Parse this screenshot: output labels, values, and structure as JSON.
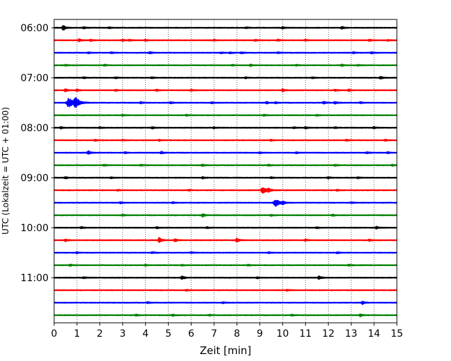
{
  "chart_data": {
    "type": "line",
    "title": "",
    "xlabel": "Zeit  [min]",
    "ylabel": "UTC (Lokalzeit = UTC + 01:00)",
    "xlim": [
      0,
      15
    ],
    "x_ticks": [
      "0",
      "1",
      "2",
      "3",
      "4",
      "5",
      "6",
      "7",
      "8",
      "9",
      "10",
      "11",
      "12",
      "13",
      "14",
      "15"
    ],
    "y_ticks": [
      "06:00",
      "07:00",
      "08:00",
      "09:00",
      "10:00",
      "11:00"
    ],
    "grid": "vertical dotted at every minute",
    "trace_interval_minutes": 15,
    "colors": [
      "#000000",
      "#ff0000",
      "#0000ff",
      "#008000"
    ],
    "traces": [
      {
        "start": "06:00",
        "color": "#000000",
        "events": [
          [
            0.4,
            1.0
          ],
          [
            1.3,
            0.3
          ],
          [
            2.4,
            0.25
          ],
          [
            8.4,
            0.25
          ],
          [
            10.0,
            0.3
          ],
          [
            12.6,
            0.45
          ]
        ]
      },
      {
        "start": "06:15",
        "color": "#ff0000",
        "events": [
          [
            1.1,
            0.5
          ],
          [
            1.6,
            0.3
          ],
          [
            3.0,
            0.3
          ],
          [
            3.3,
            0.25
          ],
          [
            4.0,
            0.3
          ],
          [
            7.0,
            0.25
          ],
          [
            8.8,
            0.3
          ],
          [
            9.8,
            0.3
          ],
          [
            11.0,
            0.25
          ],
          [
            13.8,
            0.3
          ],
          [
            14.6,
            0.25
          ]
        ]
      },
      {
        "start": "06:30",
        "color": "#0000ff",
        "events": [
          [
            1.5,
            0.25
          ],
          [
            2.5,
            0.25
          ],
          [
            4.2,
            0.3
          ],
          [
            7.3,
            0.25
          ],
          [
            7.7,
            0.3
          ],
          [
            8.2,
            0.25
          ],
          [
            9.8,
            0.25
          ],
          [
            13.1,
            0.25
          ],
          [
            13.9,
            0.3
          ]
        ]
      },
      {
        "start": "06:45",
        "color": "#008000",
        "events": [
          [
            0.5,
            0.25
          ],
          [
            2.2,
            0.3
          ],
          [
            7.8,
            0.25
          ],
          [
            8.6,
            0.3
          ],
          [
            10.6,
            0.25
          ],
          [
            12.6,
            0.3
          ],
          [
            13.3,
            0.25
          ]
        ]
      },
      {
        "start": "07:00",
        "color": "#000000",
        "events": [
          [
            1.3,
            0.25
          ],
          [
            2.7,
            0.25
          ],
          [
            4.3,
            0.3
          ],
          [
            8.4,
            0.25
          ],
          [
            11.3,
            0.25
          ],
          [
            14.3,
            0.5
          ]
        ]
      },
      {
        "start": "07:15",
        "color": "#ff0000",
        "events": [
          [
            0.5,
            0.5
          ],
          [
            1.0,
            0.3
          ],
          [
            2.7,
            0.25
          ],
          [
            4.5,
            0.3
          ],
          [
            6.0,
            0.25
          ],
          [
            10.0,
            0.45
          ],
          [
            12.3,
            0.3
          ],
          [
            12.9,
            0.35
          ]
        ]
      },
      {
        "start": "07:30",
        "color": "#0000ff",
        "events": [
          [
            0.65,
            1.8
          ],
          [
            0.95,
            1.9
          ],
          [
            3.8,
            0.3
          ],
          [
            5.1,
            0.3
          ],
          [
            6.9,
            0.25
          ],
          [
            9.3,
            0.35
          ],
          [
            9.7,
            0.3
          ],
          [
            11.8,
            0.45
          ],
          [
            12.3,
            0.35
          ],
          [
            13.4,
            0.25
          ]
        ]
      },
      {
        "start": "07:45",
        "color": "#008000",
        "events": [
          [
            3.0,
            0.25
          ],
          [
            5.8,
            0.25
          ],
          [
            9.2,
            0.3
          ],
          [
            11.5,
            0.25
          ]
        ]
      },
      {
        "start": "08:00",
        "color": "#000000",
        "events": [
          [
            0.3,
            0.3
          ],
          [
            2.0,
            0.25
          ],
          [
            4.3,
            0.3
          ],
          [
            7.0,
            0.25
          ],
          [
            10.5,
            0.3
          ],
          [
            11.0,
            0.3
          ],
          [
            12.3,
            0.25
          ],
          [
            14.0,
            0.3
          ]
        ]
      },
      {
        "start": "08:15",
        "color": "#ff0000",
        "events": [
          [
            1.8,
            0.25
          ],
          [
            3.0,
            0.25
          ],
          [
            4.6,
            0.25
          ],
          [
            9.5,
            0.25
          ],
          [
            12.8,
            0.3
          ],
          [
            14.5,
            0.25
          ]
        ]
      },
      {
        "start": "08:30",
        "color": "#0000ff",
        "events": [
          [
            1.5,
            0.75
          ],
          [
            3.1,
            0.3
          ],
          [
            4.7,
            0.4
          ],
          [
            9.0,
            0.25
          ],
          [
            10.6,
            0.25
          ],
          [
            13.7,
            0.3
          ],
          [
            14.6,
            0.3
          ]
        ]
      },
      {
        "start": "08:45",
        "color": "#008000",
        "events": [
          [
            2.2,
            0.3
          ],
          [
            3.8,
            0.3
          ],
          [
            6.5,
            0.35
          ],
          [
            9.4,
            0.25
          ],
          [
            12.3,
            0.3
          ],
          [
            14.8,
            0.25
          ]
        ]
      },
      {
        "start": "09:00",
        "color": "#000000",
        "events": [
          [
            0.5,
            0.3
          ],
          [
            2.5,
            0.25
          ],
          [
            6.5,
            0.3
          ],
          [
            9.5,
            0.25
          ],
          [
            12.0,
            0.3
          ],
          [
            13.3,
            0.25
          ]
        ]
      },
      {
        "start": "09:15",
        "color": "#ff0000",
        "events": [
          [
            2.8,
            0.25
          ],
          [
            5.9,
            0.25
          ],
          [
            9.15,
            1.2
          ],
          [
            9.4,
            0.5
          ],
          [
            12.4,
            0.25
          ]
        ]
      },
      {
        "start": "09:30",
        "color": "#0000ff",
        "events": [
          [
            2.9,
            0.3
          ],
          [
            5.2,
            0.25
          ],
          [
            9.7,
            1.3
          ],
          [
            10.0,
            0.5
          ],
          [
            13.0,
            0.25
          ]
        ]
      },
      {
        "start": "09:45",
        "color": "#008000",
        "events": [
          [
            3.0,
            0.25
          ],
          [
            6.5,
            0.55
          ],
          [
            9.5,
            0.25
          ],
          [
            12.2,
            0.3
          ]
        ]
      },
      {
        "start": "10:00",
        "color": "#000000",
        "events": [
          [
            1.2,
            0.3
          ],
          [
            4.5,
            0.3
          ],
          [
            6.7,
            0.25
          ],
          [
            11.5,
            0.25
          ],
          [
            14.1,
            0.45
          ]
        ]
      },
      {
        "start": "10:15",
        "color": "#ff0000",
        "events": [
          [
            0.5,
            0.45
          ],
          [
            4.6,
            0.95
          ],
          [
            5.3,
            0.55
          ],
          [
            8.0,
            0.75
          ],
          [
            11.0,
            0.3
          ],
          [
            13.8,
            0.3
          ]
        ]
      },
      {
        "start": "10:30",
        "color": "#0000ff",
        "events": [
          [
            1.0,
            0.25
          ],
          [
            4.3,
            0.3
          ],
          [
            6.0,
            0.25
          ],
          [
            9.4,
            0.25
          ],
          [
            12.4,
            0.3
          ]
        ]
      },
      {
        "start": "10:45",
        "color": "#008000",
        "events": [
          [
            0.7,
            0.3
          ],
          [
            4.0,
            0.25
          ],
          [
            5.6,
            0.25
          ],
          [
            8.5,
            0.25
          ],
          [
            12.9,
            0.3
          ]
        ]
      },
      {
        "start": "11:00",
        "color": "#000000",
        "events": [
          [
            1.3,
            0.3
          ],
          [
            5.6,
            0.65
          ],
          [
            8.9,
            0.25
          ],
          [
            11.6,
            0.6
          ]
        ]
      },
      {
        "start": "11:15",
        "color": "#ff0000",
        "events": [
          [
            5.8,
            0.25
          ],
          [
            10.2,
            0.25
          ]
        ]
      },
      {
        "start": "11:30",
        "color": "#0000ff",
        "events": [
          [
            4.1,
            0.3
          ],
          [
            7.4,
            0.25
          ],
          [
            13.5,
            0.55
          ]
        ]
      },
      {
        "start": "11:45",
        "color": "#008000",
        "events": [
          [
            3.6,
            0.25
          ],
          [
            5.2,
            0.35
          ],
          [
            6.8,
            0.3
          ],
          [
            10.4,
            0.25
          ],
          [
            13.4,
            0.45
          ]
        ]
      }
    ]
  }
}
